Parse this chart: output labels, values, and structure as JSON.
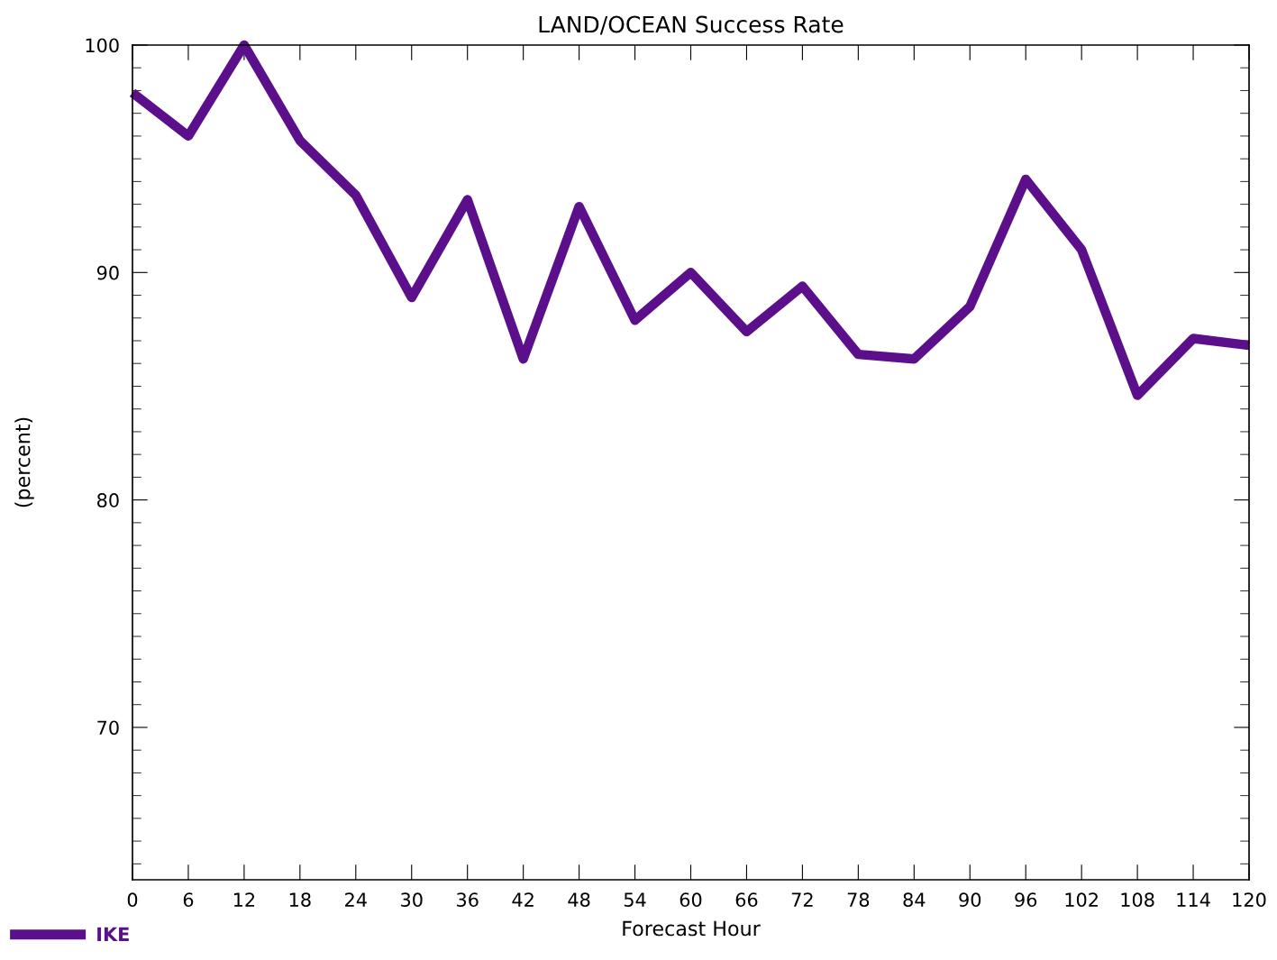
{
  "chart_data": {
    "type": "line",
    "title": "LAND/OCEAN Success Rate",
    "xlabel": "Forecast Hour",
    "ylabel": "(percent)",
    "x": [
      0,
      6,
      12,
      18,
      24,
      30,
      36,
      42,
      48,
      54,
      60,
      66,
      72,
      78,
      84,
      90,
      96,
      102,
      108,
      114,
      120
    ],
    "series": [
      {
        "name": "IKE",
        "color": "#5c0f8b",
        "values": [
          97.9,
          96.0,
          100.0,
          95.8,
          93.4,
          88.9,
          93.2,
          86.2,
          92.9,
          87.9,
          90.0,
          87.4,
          89.4,
          86.4,
          86.2,
          88.5,
          94.1,
          91.0,
          84.6,
          87.1,
          86.8
        ]
      }
    ],
    "xlim": [
      0,
      120
    ],
    "xticks": [
      0,
      6,
      12,
      18,
      24,
      30,
      36,
      42,
      48,
      54,
      60,
      66,
      72,
      78,
      84,
      90,
      96,
      102,
      108,
      114,
      120
    ],
    "ylim": [
      63.3,
      100
    ],
    "yticks": [
      {
        "value": 64,
        "label": null
      },
      {
        "value": 65,
        "label": null
      },
      {
        "value": 66,
        "label": null
      },
      {
        "value": 67,
        "label": null
      },
      {
        "value": 68,
        "label": null
      },
      {
        "value": 69,
        "label": null
      },
      70,
      {
        "value": 71,
        "label": null
      },
      {
        "value": 72,
        "label": null
      },
      {
        "value": 73,
        "label": null
      },
      {
        "value": 74,
        "label": null
      },
      {
        "value": 75,
        "label": null
      },
      {
        "value": 76,
        "label": null
      },
      {
        "value": 77,
        "label": null
      },
      {
        "value": 78,
        "label": null
      },
      {
        "value": 79,
        "label": null
      },
      80,
      {
        "value": 81,
        "label": null
      },
      {
        "value": 82,
        "label": null
      },
      {
        "value": 83,
        "label": null
      },
      {
        "value": 84,
        "label": null
      },
      {
        "value": 85,
        "label": null
      },
      {
        "value": 86,
        "label": null
      },
      {
        "value": 87,
        "label": null
      },
      {
        "value": 88,
        "label": null
      },
      {
        "value": 89,
        "label": null
      },
      90,
      {
        "value": 91,
        "label": null
      },
      {
        "value": 92,
        "label": null
      },
      {
        "value": 93,
        "label": null
      },
      {
        "value": 94,
        "label": null
      },
      {
        "value": 95,
        "label": null
      },
      {
        "value": 96,
        "label": null
      },
      {
        "value": 97,
        "label": null
      },
      {
        "value": 98,
        "label": null
      },
      {
        "value": 99,
        "label": null
      },
      100
    ],
    "grid": false,
    "legend": "bottom left",
    "marker": "none",
    "line_style": "solid"
  }
}
